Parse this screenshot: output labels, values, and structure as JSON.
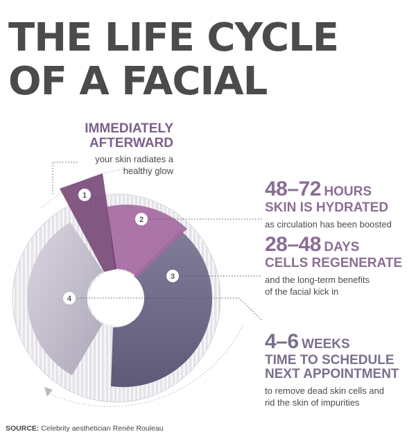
{
  "title": {
    "line1": "THE LIFE CYCLE",
    "line2": "OF A FACIAL"
  },
  "steps": [
    {
      "marker": "1",
      "headline_line1": "IMMEDIATELY",
      "headline_line2": "AFTERWARD",
      "desc_line1": "your skin radiates a",
      "desc_line2": "healthy glow",
      "color": "#7a5f8a"
    },
    {
      "marker": "2",
      "num": "48–72",
      "unit": "HOURS",
      "headline": "SKIN IS HYDRATED",
      "desc_line1": "as circulation has been boosted",
      "color": "#9b6ea3"
    },
    {
      "marker": "3",
      "num": "28–48",
      "unit": "DAYS",
      "headline": "CELLS REGENERATE",
      "desc_line1": "and the long-term benefits",
      "desc_line2": "of the facial kick in",
      "color": "#8b6d94"
    },
    {
      "marker": "4",
      "num": "4–6",
      "unit": "WEEKS",
      "headline_line1": "TIME TO SCHEDULE",
      "headline_line2": "NEXT APPOINTMENT",
      "desc_line1": "to remove dead skin cells and",
      "desc_line2": "rid the skin of impurities",
      "color": "#7b6e8c"
    }
  ],
  "source": {
    "label": "SOURCE:",
    "text": "Celebrity aesthetician Renée Rouleau"
  },
  "colors": {
    "title": "#4b4b4d",
    "segment1": "#6e3d6e",
    "segment2": "#a56aa2",
    "segment3": "#737391",
    "segment4": "#c9c4d2",
    "ring_background": "#e6e4ea"
  }
}
